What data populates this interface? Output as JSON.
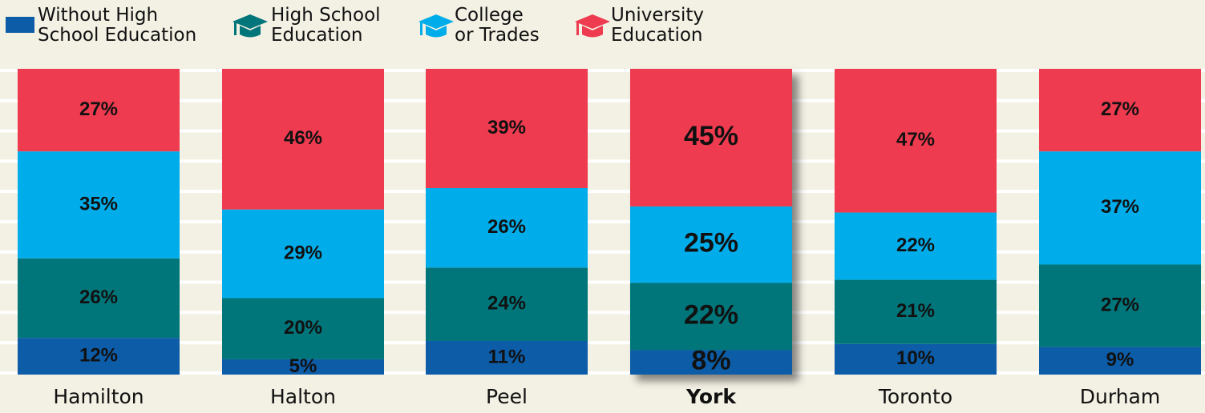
{
  "chart_data": {
    "type": "stacked_bar",
    "categories": [
      "Hamilton",
      "Halton",
      "Peel",
      "York",
      "Toronto",
      "Durham"
    ],
    "series": [
      {
        "name": "Without High\nSchool Education",
        "color": "#0d5ca8",
        "values": [
          12,
          5,
          11,
          8,
          10,
          9
        ],
        "value_labels": [
          "12%",
          "5%",
          "11%",
          "8%",
          "10%",
          "9%"
        ]
      },
      {
        "name": "High School\nEducation",
        "color": "#00757a",
        "values": [
          26,
          20,
          24,
          22,
          21,
          27
        ],
        "value_labels": [
          "26%",
          "20%",
          "24%",
          "22%",
          "21%",
          "27%"
        ]
      },
      {
        "name": "College\nor Trades",
        "color": "#00adea",
        "values": [
          35,
          29,
          26,
          25,
          22,
          37
        ],
        "value_labels": [
          "35%",
          "29%",
          "26%",
          "25%",
          "22%",
          "37%"
        ]
      },
      {
        "name": "University\nEducation",
        "color": "#ee3b4f",
        "values": [
          27,
          46,
          39,
          45,
          47,
          27
        ],
        "value_labels": [
          "27%",
          "46%",
          "39%",
          "45%",
          "47%",
          "27%"
        ]
      }
    ],
    "ylim": [
      0,
      100
    ],
    "highlight": 3
  }
}
